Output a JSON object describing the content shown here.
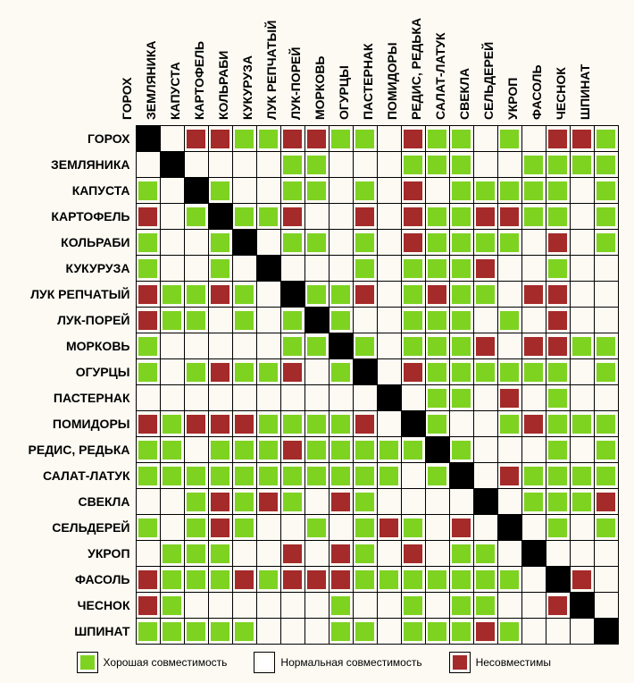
{
  "chart": {
    "type": "heatmap",
    "cell_size": 27,
    "background_color": "#fcfaf3",
    "grid_color": "#000000",
    "font_family": "Arial",
    "label_fontsize": 14,
    "label_fontweight": "bold",
    "legend_fontsize": 12,
    "colors": {
      "good": "#7ed321",
      "normal": "#ffffff",
      "bad": "#a52a2a",
      "diagonal": "#000000"
    },
    "plants": [
      "ГОРОХ",
      "ЗЕМЛЯНИКА",
      "КАПУСТА",
      "КАРТОФЕЛЬ",
      "КОЛЬРАБИ",
      "КУКУРУЗА",
      "ЛУК РЕПЧАТЫЙ",
      "ЛУК-ПОРЕЙ",
      "МОРКОВЬ",
      "ОГУРЦЫ",
      "ПАСТЕРНАК",
      "ПОМИДОРЫ",
      "РЕДИС, РЕДЬКА",
      "САЛАТ-ЛАТУК",
      "СВЕКЛА",
      "СЕЛЬДЕРЕЙ",
      "УКРОП",
      "ФАСОЛЬ",
      "ЧЕСНОК",
      "ШПИНАТ"
    ],
    "matrix": [
      [
        "D",
        "N",
        "B",
        "B",
        "G",
        "G",
        "B",
        "B",
        "G",
        "G",
        "N",
        "B",
        "G",
        "G",
        "N",
        "G",
        "N",
        "B",
        "B",
        "G"
      ],
      [
        "N",
        "D",
        "N",
        "N",
        "N",
        "N",
        "G",
        "G",
        "N",
        "N",
        "N",
        "G",
        "G",
        "G",
        "N",
        "N",
        "G",
        "G",
        "G",
        "G"
      ],
      [
        "G",
        "N",
        "D",
        "G",
        "N",
        "N",
        "G",
        "G",
        "N",
        "G",
        "N",
        "B",
        "N",
        "G",
        "G",
        "G",
        "G",
        "G",
        "N",
        "G"
      ],
      [
        "B",
        "N",
        "G",
        "D",
        "G",
        "G",
        "B",
        "N",
        "N",
        "B",
        "N",
        "B",
        "G",
        "G",
        "B",
        "B",
        "G",
        "G",
        "N",
        "G"
      ],
      [
        "G",
        "N",
        "N",
        "G",
        "D",
        "N",
        "G",
        "G",
        "N",
        "G",
        "N",
        "B",
        "G",
        "G",
        "G",
        "G",
        "N",
        "B",
        "N",
        "G"
      ],
      [
        "G",
        "N",
        "N",
        "G",
        "N",
        "D",
        "N",
        "N",
        "N",
        "G",
        "N",
        "G",
        "G",
        "G",
        "B",
        "N",
        "N",
        "G",
        "N",
        "N"
      ],
      [
        "B",
        "G",
        "G",
        "B",
        "G",
        "N",
        "D",
        "G",
        "G",
        "B",
        "N",
        "G",
        "B",
        "G",
        "G",
        "N",
        "B",
        "B",
        "N",
        "N"
      ],
      [
        "B",
        "G",
        "G",
        "N",
        "G",
        "N",
        "G",
        "D",
        "G",
        "N",
        "N",
        "G",
        "G",
        "G",
        "N",
        "G",
        "N",
        "B",
        "N",
        "N"
      ],
      [
        "G",
        "N",
        "N",
        "N",
        "N",
        "N",
        "G",
        "G",
        "D",
        "G",
        "N",
        "G",
        "G",
        "G",
        "B",
        "N",
        "B",
        "B",
        "G",
        "G"
      ],
      [
        "G",
        "N",
        "G",
        "B",
        "G",
        "G",
        "B",
        "N",
        "G",
        "D",
        "N",
        "B",
        "G",
        "G",
        "G",
        "G",
        "G",
        "G",
        "N",
        "G"
      ],
      [
        "N",
        "N",
        "N",
        "N",
        "N",
        "N",
        "N",
        "N",
        "N",
        "N",
        "D",
        "N",
        "G",
        "G",
        "N",
        "B",
        "N",
        "G",
        "N",
        "N"
      ],
      [
        "B",
        "G",
        "B",
        "B",
        "B",
        "G",
        "G",
        "G",
        "G",
        "B",
        "N",
        "D",
        "G",
        "N",
        "N",
        "G",
        "B",
        "G",
        "G",
        "G"
      ],
      [
        "G",
        "G",
        "N",
        "G",
        "G",
        "G",
        "B",
        "G",
        "G",
        "G",
        "G",
        "G",
        "D",
        "G",
        "N",
        "N",
        "N",
        "G",
        "N",
        "G"
      ],
      [
        "G",
        "G",
        "G",
        "G",
        "G",
        "G",
        "G",
        "G",
        "G",
        "G",
        "G",
        "N",
        "G",
        "D",
        "N",
        "B",
        "G",
        "G",
        "G",
        "G"
      ],
      [
        "N",
        "N",
        "G",
        "B",
        "G",
        "B",
        "G",
        "N",
        "B",
        "G",
        "N",
        "N",
        "N",
        "N",
        "D",
        "N",
        "G",
        "G",
        "G",
        "B"
      ],
      [
        "G",
        "N",
        "G",
        "B",
        "G",
        "N",
        "N",
        "G",
        "N",
        "G",
        "B",
        "G",
        "N",
        "B",
        "N",
        "D",
        "N",
        "G",
        "N",
        "G"
      ],
      [
        "N",
        "G",
        "G",
        "G",
        "N",
        "N",
        "B",
        "N",
        "B",
        "G",
        "N",
        "B",
        "N",
        "G",
        "G",
        "N",
        "D",
        "N",
        "N",
        "N"
      ],
      [
        "B",
        "G",
        "G",
        "G",
        "B",
        "G",
        "B",
        "B",
        "B",
        "G",
        "G",
        "G",
        "G",
        "G",
        "G",
        "G",
        "N",
        "D",
        "B",
        "N"
      ],
      [
        "B",
        "G",
        "N",
        "N",
        "N",
        "N",
        "N",
        "N",
        "G",
        "N",
        "N",
        "G",
        "N",
        "G",
        "G",
        "N",
        "N",
        "B",
        "D",
        "N"
      ],
      [
        "G",
        "G",
        "G",
        "G",
        "G",
        "N",
        "N",
        "N",
        "G",
        "G",
        "N",
        "G",
        "G",
        "G",
        "B",
        "G",
        "N",
        "N",
        "N",
        "D"
      ]
    ],
    "legend": {
      "good": "Хорошая совместимость",
      "normal": "Нормальная совместимость",
      "bad": "Несовместимы"
    }
  }
}
